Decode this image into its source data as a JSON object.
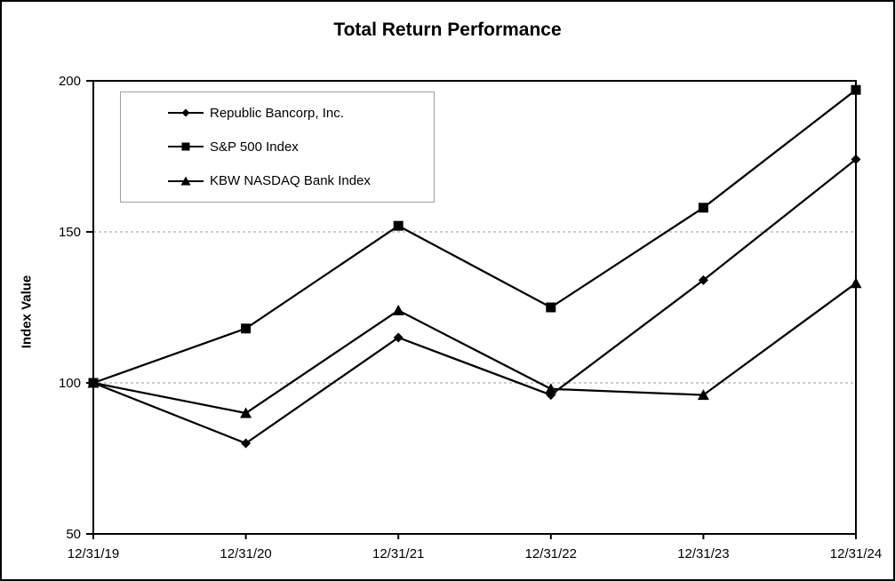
{
  "figure_title": "Total Return Performance",
  "chart_data": {
    "type": "line",
    "title": "Total Return Performance",
    "xlabel": "",
    "ylabel": "Index Value",
    "categories": [
      "12/31/19",
      "12/31/20",
      "12/31/21",
      "12/31/22",
      "12/31/23",
      "12/31/24"
    ],
    "series": [
      {
        "name": "Republic Bancorp, Inc.",
        "marker": "diamond",
        "values": [
          100,
          80,
          115,
          96,
          134,
          174
        ]
      },
      {
        "name": "S&P 500 Index",
        "marker": "square",
        "values": [
          100,
          118,
          152,
          125,
          158,
          197
        ]
      },
      {
        "name": "KBW NASDAQ Bank Index",
        "marker": "triangle",
        "values": [
          100,
          90,
          124,
          98,
          96,
          133
        ]
      }
    ],
    "ylim": [
      50,
      200
    ],
    "yticks": [
      200,
      150,
      100,
      50
    ],
    "gridlines_y": [
      150,
      100
    ],
    "grid_style": "dashed horizontal gridlines at 100 and 150 only",
    "legend_position": "inside top-left",
    "colors": {
      "line": "#000000",
      "marker": "#000000",
      "text": "#000000",
      "gridline": "#999999",
      "legend_border": "#a0a0a0",
      "background": "#ffffff",
      "frame": "#000000"
    }
  }
}
